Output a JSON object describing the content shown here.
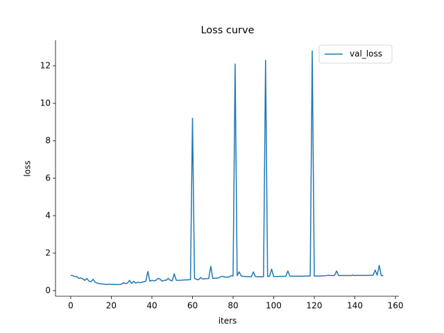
{
  "chart_data": {
    "type": "line",
    "title": "Loss curve",
    "xlabel": "iters",
    "ylabel": "loss",
    "x": [
      0,
      1,
      2,
      3,
      4,
      5,
      6,
      7,
      8,
      9,
      10,
      11,
      12,
      13,
      14,
      15,
      16,
      17,
      18,
      19,
      20,
      21,
      22,
      23,
      24,
      25,
      26,
      27,
      28,
      29,
      30,
      31,
      32,
      33,
      34,
      35,
      36,
      37,
      38,
      39,
      40,
      41,
      42,
      43,
      44,
      45,
      46,
      47,
      48,
      49,
      50,
      51,
      52,
      53,
      54,
      55,
      56,
      57,
      58,
      59,
      60,
      61,
      62,
      63,
      64,
      65,
      66,
      67,
      68,
      69,
      70,
      71,
      72,
      73,
      74,
      75,
      76,
      77,
      78,
      79,
      80,
      81,
      82,
      83,
      84,
      85,
      86,
      87,
      88,
      89,
      90,
      91,
      92,
      93,
      94,
      95,
      96,
      97,
      98,
      99,
      100,
      101,
      102,
      103,
      104,
      105,
      106,
      107,
      108,
      109,
      110,
      111,
      112,
      113,
      114,
      115,
      116,
      117,
      118,
      119,
      120,
      121,
      122,
      123,
      124,
      125,
      126,
      127,
      128,
      129,
      130,
      131,
      132,
      133,
      134,
      135,
      136,
      137,
      138,
      139,
      140,
      141,
      142,
      143,
      144,
      145,
      146,
      147,
      148,
      149,
      150,
      151,
      152,
      153,
      154
    ],
    "series": [
      {
        "name": "val_loss",
        "color": "#1f77b4",
        "values": [
          0.82,
          0.8,
          0.75,
          0.75,
          0.65,
          0.68,
          0.62,
          0.55,
          0.65,
          0.5,
          0.48,
          0.6,
          0.45,
          0.4,
          0.38,
          0.36,
          0.35,
          0.34,
          0.33,
          0.35,
          0.33,
          0.34,
          0.33,
          0.32,
          0.33,
          0.35,
          0.42,
          0.38,
          0.4,
          0.55,
          0.38,
          0.5,
          0.4,
          0.45,
          0.42,
          0.44,
          0.48,
          0.5,
          1.03,
          0.5,
          0.55,
          0.52,
          0.55,
          0.65,
          0.62,
          0.5,
          0.55,
          0.55,
          0.65,
          0.55,
          0.52,
          0.9,
          0.55,
          0.55,
          0.55,
          0.56,
          0.57,
          0.57,
          0.58,
          0.58,
          9.2,
          0.65,
          0.6,
          0.58,
          0.7,
          0.62,
          0.63,
          0.64,
          0.65,
          1.3,
          0.65,
          0.66,
          0.67,
          0.68,
          0.75,
          0.76,
          0.72,
          0.73,
          0.72,
          0.8,
          0.78,
          12.1,
          0.8,
          1.0,
          0.78,
          0.76,
          0.75,
          0.75,
          0.74,
          0.74,
          1.0,
          0.75,
          0.74,
          0.74,
          0.74,
          0.74,
          12.3,
          0.75,
          0.78,
          1.15,
          0.75,
          0.75,
          0.75,
          0.76,
          0.76,
          0.76,
          0.77,
          1.05,
          0.77,
          0.77,
          0.77,
          0.77,
          0.77,
          0.77,
          0.77,
          0.77,
          0.78,
          0.78,
          0.78,
          12.8,
          0.78,
          0.78,
          0.78,
          0.78,
          0.79,
          0.79,
          0.8,
          0.82,
          0.8,
          0.8,
          0.81,
          1.05,
          0.8,
          0.8,
          0.8,
          0.8,
          0.8,
          0.8,
          0.8,
          0.83,
          0.8,
          0.82,
          0.81,
          0.81,
          0.81,
          0.81,
          0.81,
          0.82,
          0.82,
          0.82,
          1.1,
          0.82,
          1.35,
          0.8,
          0.8
        ]
      }
    ],
    "xlim": [
      -7.5,
      161.7
    ],
    "ylim": [
      -0.3,
      13.37
    ],
    "xticks": [
      0,
      20,
      40,
      60,
      80,
      100,
      120,
      140,
      160
    ],
    "yticks": [
      0,
      2,
      4,
      6,
      8,
      10,
      12
    ],
    "legend": "upper right"
  }
}
